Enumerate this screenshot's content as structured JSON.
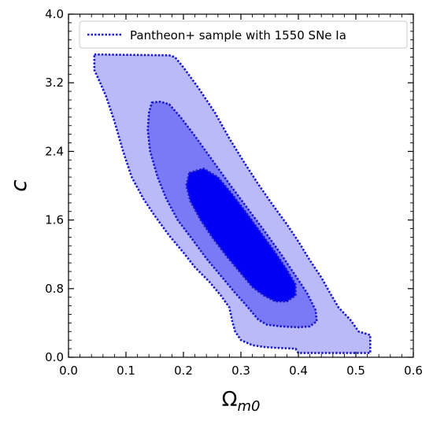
{
  "chart_data": {
    "type": "contour",
    "title": "",
    "xlabel": "Ω",
    "xlabel_sub": "m0",
    "ylabel": "c",
    "xlim": [
      0.0,
      0.6
    ],
    "ylim": [
      0.0,
      4.0
    ],
    "x_ticks": [
      0.0,
      0.1,
      0.2,
      0.3,
      0.4,
      0.5,
      0.6
    ],
    "x_tick_labels": [
      "0.0",
      "0.1",
      "0.2",
      "0.3",
      "0.4",
      "0.5",
      "0.6"
    ],
    "y_ticks": [
      0.0,
      0.8,
      1.6,
      2.4,
      3.2,
      4.0
    ],
    "y_tick_labels": [
      "0.0",
      "0.8",
      "1.6",
      "2.4",
      "3.2",
      "4.0"
    ],
    "grid": false,
    "legend": {
      "placement": "top-right",
      "entries": [
        "Pantheon+ sample with 1550 SNe Ia"
      ]
    },
    "colors": {
      "level_3sigma": "#babaf9",
      "level_2sigma": "#7a7af7",
      "level_1sigma": "#0000f5",
      "contour_line": "#1a1acc",
      "frame": "#000000"
    },
    "contours": [
      {
        "level": "3-sigma",
        "points": [
          [
            0.045,
            3.53
          ],
          [
            0.175,
            3.52
          ],
          [
            0.185,
            3.5
          ],
          [
            0.2,
            3.38
          ],
          [
            0.225,
            3.15
          ],
          [
            0.255,
            2.85
          ],
          [
            0.28,
            2.55
          ],
          [
            0.305,
            2.28
          ],
          [
            0.33,
            2.02
          ],
          [
            0.355,
            1.78
          ],
          [
            0.38,
            1.55
          ],
          [
            0.4,
            1.35
          ],
          [
            0.42,
            1.13
          ],
          [
            0.44,
            0.93
          ],
          [
            0.455,
            0.75
          ],
          [
            0.47,
            0.58
          ],
          [
            0.49,
            0.44
          ],
          [
            0.505,
            0.3
          ],
          [
            0.515,
            0.28
          ],
          [
            0.525,
            0.26
          ],
          [
            0.525,
            0.05
          ],
          [
            0.4,
            0.05
          ],
          [
            0.395,
            0.1
          ],
          [
            0.36,
            0.11
          ],
          [
            0.34,
            0.12
          ],
          [
            0.32,
            0.14
          ],
          [
            0.3,
            0.2
          ],
          [
            0.29,
            0.3
          ],
          [
            0.285,
            0.42
          ],
          [
            0.28,
            0.58
          ],
          [
            0.265,
            0.72
          ],
          [
            0.245,
            0.88
          ],
          [
            0.22,
            1.05
          ],
          [
            0.2,
            1.22
          ],
          [
            0.175,
            1.42
          ],
          [
            0.15,
            1.65
          ],
          [
            0.13,
            1.85
          ],
          [
            0.11,
            2.1
          ],
          [
            0.095,
            2.4
          ],
          [
            0.08,
            2.75
          ],
          [
            0.065,
            3.05
          ],
          [
            0.055,
            3.2
          ],
          [
            0.045,
            3.35
          ]
        ]
      },
      {
        "level": "2-sigma",
        "points": [
          [
            0.145,
            2.97
          ],
          [
            0.16,
            2.98
          ],
          [
            0.175,
            2.95
          ],
          [
            0.195,
            2.8
          ],
          [
            0.22,
            2.58
          ],
          [
            0.25,
            2.3
          ],
          [
            0.28,
            2.02
          ],
          [
            0.31,
            1.75
          ],
          [
            0.34,
            1.48
          ],
          [
            0.37,
            1.2
          ],
          [
            0.395,
            0.95
          ],
          [
            0.415,
            0.75
          ],
          [
            0.43,
            0.55
          ],
          [
            0.432,
            0.42
          ],
          [
            0.42,
            0.36
          ],
          [
            0.4,
            0.35
          ],
          [
            0.37,
            0.36
          ],
          [
            0.345,
            0.38
          ],
          [
            0.33,
            0.44
          ],
          [
            0.32,
            0.52
          ],
          [
            0.31,
            0.6
          ],
          [
            0.29,
            0.75
          ],
          [
            0.265,
            0.95
          ],
          [
            0.24,
            1.15
          ],
          [
            0.215,
            1.38
          ],
          [
            0.19,
            1.6
          ],
          [
            0.17,
            1.85
          ],
          [
            0.155,
            2.1
          ],
          [
            0.142,
            2.4
          ],
          [
            0.138,
            2.65
          ],
          [
            0.14,
            2.85
          ]
        ]
      },
      {
        "level": "1-sigma",
        "points": [
          [
            0.21,
            2.15
          ],
          [
            0.235,
            2.2
          ],
          [
            0.26,
            2.1
          ],
          [
            0.285,
            1.9
          ],
          [
            0.31,
            1.68
          ],
          [
            0.335,
            1.45
          ],
          [
            0.36,
            1.22
          ],
          [
            0.38,
            1.02
          ],
          [
            0.395,
            0.85
          ],
          [
            0.395,
            0.72
          ],
          [
            0.38,
            0.65
          ],
          [
            0.36,
            0.65
          ],
          [
            0.34,
            0.72
          ],
          [
            0.32,
            0.82
          ],
          [
            0.3,
            0.98
          ],
          [
            0.275,
            1.18
          ],
          [
            0.25,
            1.4
          ],
          [
            0.23,
            1.6
          ],
          [
            0.212,
            1.82
          ],
          [
            0.205,
            2.0
          ]
        ]
      }
    ]
  }
}
